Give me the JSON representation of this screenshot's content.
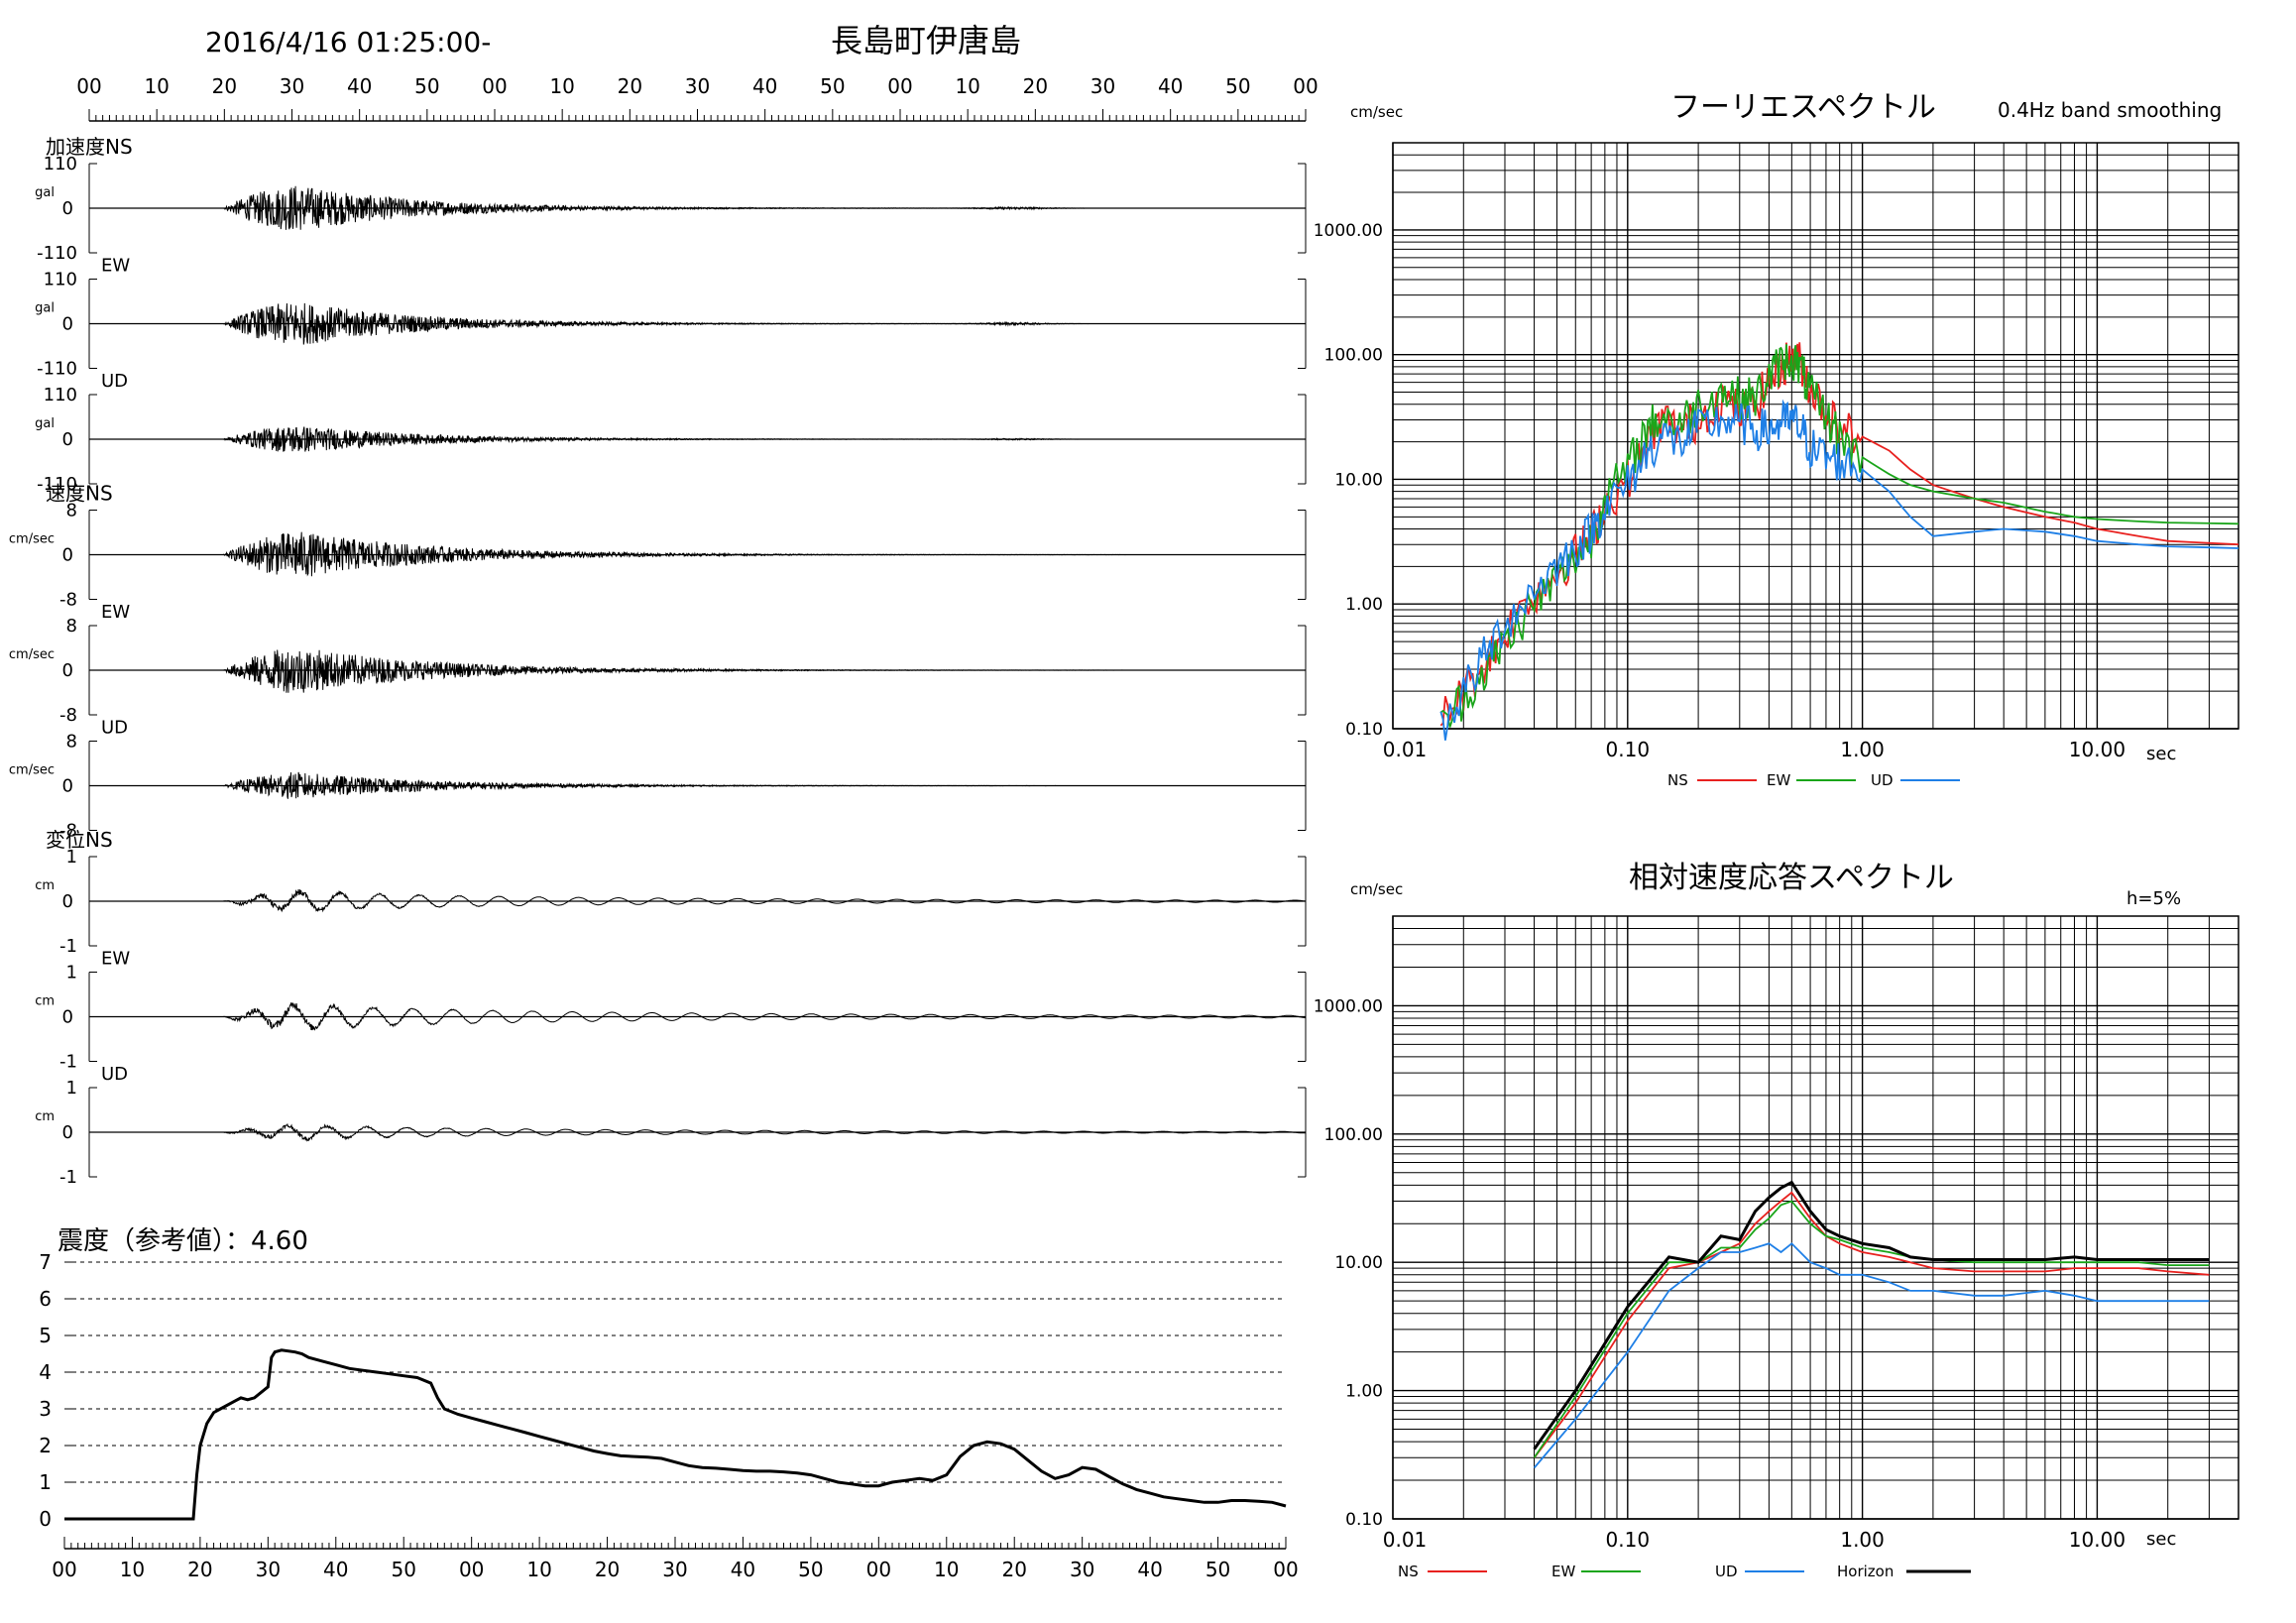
{
  "header": {
    "datetime": "2016/4/16 01:25:00-",
    "station": "長島町伊唐島",
    "time_ticks": [
      "00",
      "10",
      "20",
      "30",
      "40",
      "50",
      "00",
      "10",
      "20",
      "30",
      "40",
      "50",
      "00",
      "10",
      "20",
      "30",
      "40",
      "50",
      "00"
    ]
  },
  "waveforms": [
    {
      "group_label": "加速度NS",
      "component": "",
      "unit": "gal",
      "max_label": "110",
      "zero_label": "0",
      "min_label": "-110",
      "amp": 1.0,
      "onset": 0.11,
      "envelope": "acc"
    },
    {
      "group_label": "",
      "component": "EW",
      "unit": "gal",
      "max_label": "110",
      "zero_label": "0",
      "min_label": "-110",
      "amp": 0.95,
      "onset": 0.11,
      "envelope": "acc"
    },
    {
      "group_label": "",
      "component": "UD",
      "unit": "gal",
      "max_label": "110",
      "zero_label": "0",
      "min_label": "-110",
      "amp": 0.6,
      "onset": 0.11,
      "envelope": "acc"
    },
    {
      "group_label": "速度NS",
      "component": "",
      "unit": "cm/sec",
      "max_label": "8",
      "zero_label": "0",
      "min_label": "-8",
      "amp": 0.95,
      "onset": 0.11,
      "envelope": "vel"
    },
    {
      "group_label": "",
      "component": "EW",
      "unit": "cm/sec",
      "max_label": "8",
      "zero_label": "0",
      "min_label": "-8",
      "amp": 0.95,
      "onset": 0.11,
      "envelope": "vel"
    },
    {
      "group_label": "",
      "component": "UD",
      "unit": "cm/sec",
      "max_label": "8",
      "zero_label": "0",
      "min_label": "-8",
      "amp": 0.55,
      "onset": 0.11,
      "envelope": "vel"
    },
    {
      "group_label": "変位NS",
      "component": "",
      "unit": "cm",
      "max_label": "1",
      "zero_label": "0",
      "min_label": "-1",
      "amp": 0.55,
      "onset": 0.11,
      "envelope": "disp"
    },
    {
      "group_label": "",
      "component": "EW",
      "unit": "cm",
      "max_label": "1",
      "zero_label": "0",
      "min_label": "-1",
      "amp": 0.7,
      "onset": 0.11,
      "envelope": "disp"
    },
    {
      "group_label": "",
      "component": "UD",
      "unit": "cm",
      "max_label": "1",
      "zero_label": "0",
      "min_label": "-1",
      "amp": 0.4,
      "onset": 0.11,
      "envelope": "disp"
    }
  ],
  "intensity": {
    "title": "震度（参考値）：4.60",
    "y_ticks": [
      "0",
      "1",
      "2",
      "3",
      "4",
      "5",
      "6",
      "7"
    ],
    "x_ticks": [
      "00",
      "10",
      "20",
      "30",
      "40",
      "50",
      "00",
      "10",
      "20",
      "30",
      "40",
      "50",
      "00",
      "10",
      "20",
      "30",
      "40",
      "50",
      "00"
    ],
    "chart_data": {
      "type": "line",
      "x_range": [
        0,
        180
      ],
      "y_range": [
        0,
        7
      ],
      "x": [
        0,
        19,
        19.5,
        20,
        21,
        22,
        23,
        25,
        26,
        27,
        28,
        30,
        30.5,
        31,
        32,
        34,
        35,
        36,
        38,
        40,
        42,
        44,
        46,
        48,
        50,
        52,
        54,
        55,
        56,
        58,
        60,
        62,
        64,
        66,
        68,
        70,
        72,
        74,
        76,
        78,
        80,
        82,
        84,
        86,
        88,
        90,
        92,
        94,
        96,
        98,
        100,
        102,
        104,
        106,
        108,
        110,
        112,
        114,
        116,
        118,
        120,
        122,
        124,
        126,
        128,
        130,
        132,
        134,
        136,
        138,
        140,
        142,
        144,
        146,
        148,
        150,
        152,
        154,
        156,
        158,
        160,
        162,
        164,
        166,
        168,
        170,
        172,
        174,
        176,
        178,
        180
      ],
      "y": [
        0,
        0,
        1.2,
        2.0,
        2.6,
        2.9,
        3.0,
        3.2,
        3.3,
        3.25,
        3.3,
        3.6,
        4.4,
        4.55,
        4.6,
        4.55,
        4.5,
        4.4,
        4.3,
        4.2,
        4.1,
        4.05,
        4.0,
        3.95,
        3.9,
        3.85,
        3.7,
        3.3,
        3.0,
        2.85,
        2.75,
        2.65,
        2.55,
        2.45,
        2.35,
        2.25,
        2.15,
        2.05,
        1.95,
        1.85,
        1.78,
        1.72,
        1.7,
        1.68,
        1.65,
        1.55,
        1.45,
        1.4,
        1.38,
        1.35,
        1.32,
        1.3,
        1.3,
        1.28,
        1.25,
        1.2,
        1.1,
        1.0,
        0.95,
        0.9,
        0.9,
        1.0,
        1.05,
        1.1,
        1.05,
        1.2,
        1.7,
        2.0,
        2.1,
        2.05,
        1.9,
        1.6,
        1.3,
        1.1,
        1.2,
        1.4,
        1.35,
        1.15,
        0.95,
        0.8,
        0.7,
        0.6,
        0.55,
        0.5,
        0.45,
        0.45,
        0.5,
        0.5,
        0.48,
        0.45,
        0.35
      ]
    }
  },
  "fourier": {
    "title": "フーリエスペクトル",
    "subtitle": "0.4Hz band smoothing",
    "y_unit": "cm/sec",
    "x_unit": "sec",
    "y_ticks": [
      "1000.00",
      "100.00",
      "10.00",
      "1.00",
      "0.10"
    ],
    "x_ticks": [
      "0.01",
      "0.10",
      "1.00",
      "10.00"
    ],
    "legend": [
      "NS",
      "EW",
      "UD"
    ],
    "chart_data": {
      "type": "line",
      "x_scale": "log",
      "y_scale": "log",
      "x_range": [
        0.01,
        40
      ],
      "y_range": [
        0.1,
        5000
      ],
      "series": [
        {
          "name": "NS",
          "color": "#e8211f",
          "x": [
            0.016,
            0.02,
            0.025,
            0.03,
            0.04,
            0.05,
            0.06,
            0.07,
            0.08,
            0.1,
            0.12,
            0.14,
            0.17,
            0.2,
            0.25,
            0.3,
            0.35,
            0.4,
            0.45,
            0.5,
            0.55,
            0.6,
            0.7,
            0.8,
            1.0,
            1.3,
            1.6,
            2.0,
            3.0,
            4.0,
            6.0,
            8.0,
            10,
            15,
            20,
            40
          ],
          "y": [
            0.12,
            0.2,
            0.35,
            0.6,
            1.2,
            1.8,
            2.5,
            3.5,
            6,
            10,
            18,
            30,
            25,
            30,
            45,
            35,
            40,
            60,
            80,
            95,
            85,
            55,
            35,
            25,
            22,
            17,
            12,
            9,
            7,
            6,
            5,
            4.5,
            4,
            3.5,
            3.2,
            3.0
          ]
        },
        {
          "name": "EW",
          "color": "#1aa51a",
          "x": [
            0.016,
            0.02,
            0.025,
            0.03,
            0.04,
            0.05,
            0.06,
            0.07,
            0.08,
            0.1,
            0.12,
            0.14,
            0.17,
            0.2,
            0.25,
            0.3,
            0.35,
            0.4,
            0.45,
            0.5,
            0.55,
            0.6,
            0.7,
            0.8,
            1.0,
            1.3,
            1.6,
            2.0,
            3.0,
            4.0,
            6.0,
            8.0,
            10,
            15,
            20,
            40
          ],
          "y": [
            0.1,
            0.18,
            0.3,
            0.5,
            1.0,
            1.6,
            2.4,
            3.4,
            7,
            12,
            25,
            32,
            28,
            40,
            50,
            45,
            45,
            65,
            85,
            95,
            75,
            48,
            32,
            22,
            15,
            11,
            9,
            8,
            7,
            6.5,
            5.5,
            5,
            4.8,
            4.6,
            4.5,
            4.4
          ]
        },
        {
          "name": "UD",
          "color": "#1e7fe6",
          "x": [
            0.016,
            0.02,
            0.025,
            0.03,
            0.04,
            0.05,
            0.06,
            0.07,
            0.08,
            0.1,
            0.12,
            0.14,
            0.17,
            0.2,
            0.25,
            0.3,
            0.35,
            0.4,
            0.45,
            0.5,
            0.55,
            0.6,
            0.7,
            0.8,
            1.0,
            1.3,
            1.6,
            2.0,
            3.0,
            4.0,
            6.0,
            8.0,
            10,
            15,
            20,
            40
          ],
          "y": [
            0.1,
            0.2,
            0.4,
            0.7,
            1.3,
            2.0,
            2.8,
            3.8,
            6,
            9,
            16,
            22,
            20,
            25,
            30,
            28,
            25,
            25,
            28,
            30,
            25,
            18,
            15,
            14,
            12,
            8,
            5,
            3.5,
            3.8,
            4.0,
            3.8,
            3.5,
            3.2,
            3.0,
            2.9,
            2.8
          ]
        }
      ]
    }
  },
  "response": {
    "title": "相対速度応答スペクトル",
    "damping": "h=5%",
    "y_unit": "cm/sec",
    "x_unit": "sec",
    "y_ticks": [
      "1000.00",
      "100.00",
      "10.00",
      "1.00",
      "0.10"
    ],
    "x_ticks": [
      "0.01",
      "0.10",
      "1.00",
      "10.00"
    ],
    "legend": [
      "NS",
      "EW",
      "UD",
      "Horizon"
    ],
    "chart_data": {
      "type": "line",
      "x_scale": "log",
      "y_scale": "log",
      "x_range": [
        0.01,
        40
      ],
      "y_range": [
        0.1,
        5000
      ],
      "series": [
        {
          "name": "NS",
          "color": "#e8211f",
          "x": [
            0.04,
            0.06,
            0.1,
            0.15,
            0.2,
            0.25,
            0.3,
            0.35,
            0.4,
            0.45,
            0.5,
            0.6,
            0.7,
            0.8,
            1.0,
            1.3,
            1.6,
            2.0,
            3.0,
            4.0,
            6.0,
            8.0,
            10,
            15,
            20,
            30
          ],
          "y": [
            0.3,
            0.8,
            3.5,
            9,
            10,
            12,
            14,
            20,
            25,
            30,
            35,
            22,
            16,
            14,
            12,
            11,
            10,
            9,
            8.5,
            8.5,
            8.5,
            9,
            9,
            9,
            8.5,
            8.0
          ]
        },
        {
          "name": "EW",
          "color": "#1aa51a",
          "x": [
            0.04,
            0.06,
            0.1,
            0.15,
            0.2,
            0.25,
            0.3,
            0.35,
            0.4,
            0.45,
            0.5,
            0.6,
            0.7,
            0.8,
            1.0,
            1.3,
            1.6,
            2.0,
            3.0,
            4.0,
            6.0,
            8.0,
            10,
            15,
            20,
            30
          ],
          "y": [
            0.3,
            0.9,
            4,
            10,
            10,
            13,
            13,
            18,
            22,
            28,
            30,
            20,
            16,
            15,
            13,
            12,
            11,
            10.5,
            10,
            10,
            10,
            10,
            10,
            10,
            9.5,
            9.5
          ]
        },
        {
          "name": "UD",
          "color": "#1e7fe6",
          "x": [
            0.04,
            0.06,
            0.1,
            0.15,
            0.2,
            0.25,
            0.3,
            0.35,
            0.4,
            0.45,
            0.5,
            0.6,
            0.7,
            0.8,
            1.0,
            1.3,
            1.6,
            2.0,
            3.0,
            4.0,
            6.0,
            8.0,
            10,
            15,
            20,
            30
          ],
          "y": [
            0.25,
            0.6,
            2,
            6,
            9,
            12,
            12,
            13,
            14,
            12,
            14,
            10,
            9,
            8,
            8,
            7,
            6,
            6,
            5.5,
            5.5,
            6,
            5.5,
            5,
            5,
            5,
            5
          ]
        },
        {
          "name": "Horizon",
          "color": "#000000",
          "x": [
            0.04,
            0.06,
            0.1,
            0.15,
            0.2,
            0.25,
            0.3,
            0.35,
            0.4,
            0.45,
            0.5,
            0.6,
            0.7,
            0.8,
            1.0,
            1.3,
            1.6,
            2.0,
            3.0,
            4.0,
            6.0,
            8.0,
            10,
            15,
            20,
            30
          ],
          "y": [
            0.35,
            1.0,
            4.5,
            11,
            10,
            16,
            15,
            25,
            32,
            38,
            42,
            25,
            18,
            16,
            14,
            13,
            11,
            10.5,
            10.5,
            10.5,
            10.5,
            11,
            10.5,
            10.5,
            10.5,
            10.5
          ]
        }
      ]
    }
  }
}
